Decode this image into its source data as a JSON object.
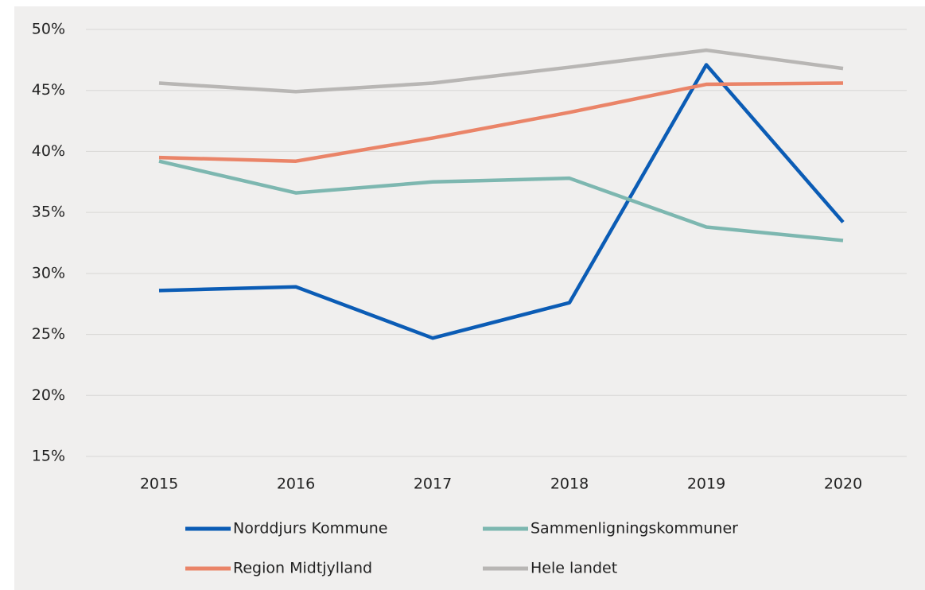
{
  "chart_data": {
    "type": "line",
    "categories": [
      "2015",
      "2016",
      "2017",
      "2018",
      "2019",
      "2020"
    ],
    "series": [
      {
        "name": "Norddjurs Kommune",
        "color": "#0b5cb5",
        "values": [
          28.6,
          28.9,
          24.7,
          27.6,
          47.1,
          34.2
        ]
      },
      {
        "name": "Sammenligningskommuner",
        "color": "#7db7b0",
        "values": [
          39.2,
          36.6,
          37.5,
          37.8,
          33.8,
          32.7
        ]
      },
      {
        "name": "Region Midtjylland",
        "color": "#ea8468",
        "values": [
          39.5,
          39.2,
          41.1,
          43.2,
          45.5,
          45.6
        ]
      },
      {
        "name": "Hele landet",
        "color": "#b8b6b4",
        "values": [
          45.6,
          44.9,
          45.6,
          46.9,
          48.3,
          46.8
        ]
      }
    ],
    "ylim": [
      15,
      50
    ],
    "yticks": [
      {
        "value": 15,
        "label": "15%"
      },
      {
        "value": 20,
        "label": "20%"
      },
      {
        "value": 25,
        "label": "25%"
      },
      {
        "value": 30,
        "label": "30%"
      },
      {
        "value": 35,
        "label": "35%"
      },
      {
        "value": 40,
        "label": "40%"
      },
      {
        "value": 45,
        "label": "45%"
      },
      {
        "value": 50,
        "label": "50%"
      }
    ],
    "grid": true
  }
}
